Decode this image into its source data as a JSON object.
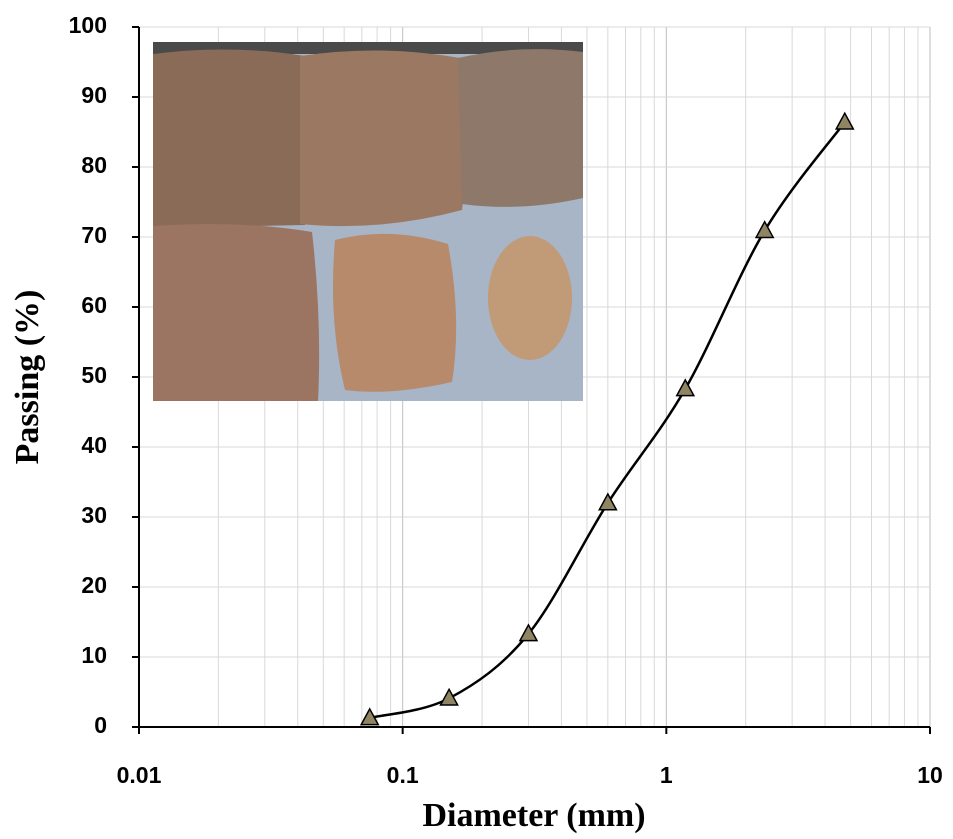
{
  "chart_data": {
    "type": "line",
    "xlabel": "Diameter (mm)",
    "ylabel": "Passing (%)",
    "x": [
      0.075,
      0.15,
      0.3,
      0.6,
      1.18,
      2.36,
      4.75
    ],
    "series": [
      {
        "color": "#000000",
        "marker_color": "#8f8563",
        "values": [
          1.3,
          4.1,
          13.3,
          32,
          48.3,
          70.9,
          86.4
        ]
      }
    ],
    "xscale": "log",
    "xlim": [
      0.01,
      10
    ],
    "xticks": [
      0.01,
      0.1,
      1,
      10
    ],
    "ylim": [
      0,
      100
    ],
    "yticks": [
      0,
      10,
      20,
      30,
      40,
      50,
      60,
      70,
      80,
      90,
      100
    ],
    "grid": true
  }
}
